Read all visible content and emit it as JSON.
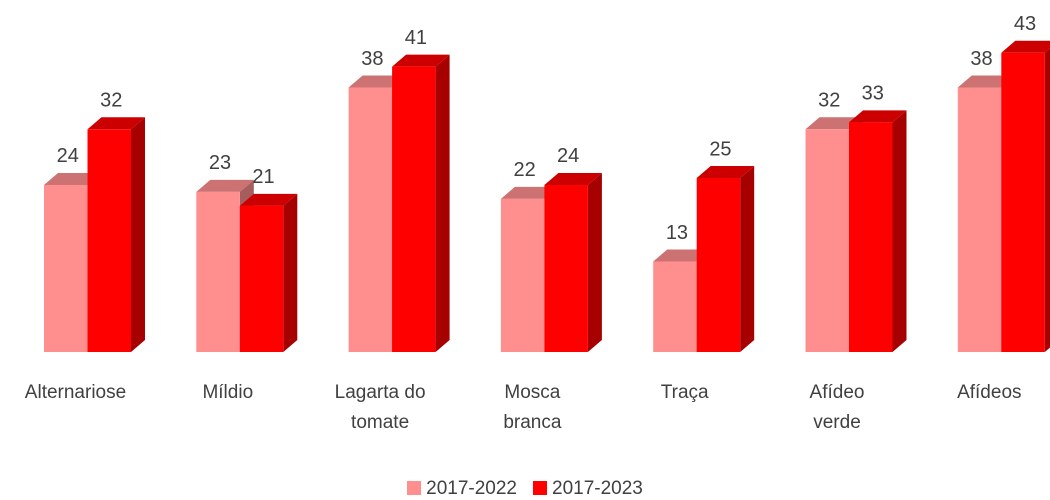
{
  "chart_data": {
    "type": "bar3d",
    "categories": [
      "Alternariose",
      "Míldio",
      "Lagarta do\ntomate",
      "Mosca\nbranca",
      "Traça",
      "Afídeo\nverde",
      "Afídeos"
    ],
    "series": [
      {
        "name": "2017-2022",
        "color": "#ff8f8f",
        "values": [
          24,
          23,
          38,
          22,
          13,
          32,
          38
        ]
      },
      {
        "name": "2017-2023",
        "color": "#ff0000",
        "values": [
          32,
          21,
          41,
          24,
          25,
          33,
          43
        ]
      }
    ],
    "ylim": [
      0,
      50
    ],
    "legend": "bottom"
  }
}
